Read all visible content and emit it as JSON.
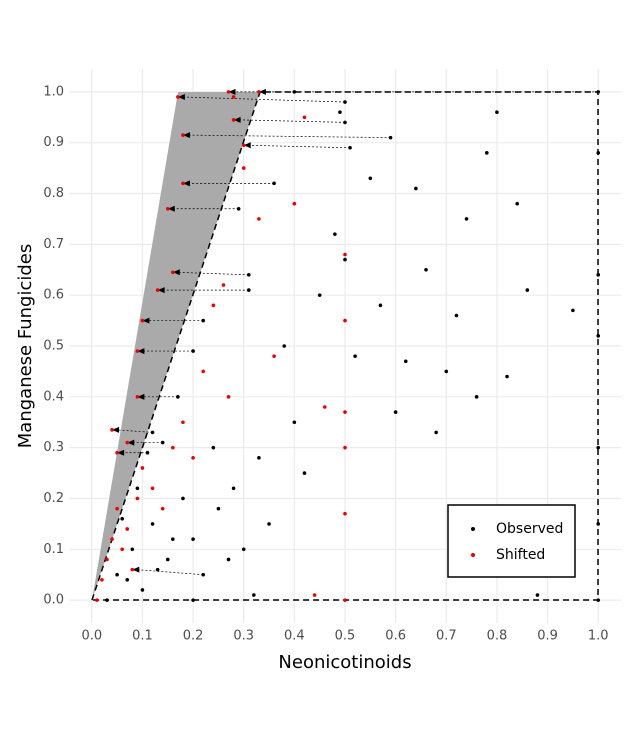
{
  "chart_data": {
    "type": "scatter",
    "xlabel": "Neonicotinoids",
    "ylabel": "Manganese Fungicides",
    "xlim": [
      -0.045,
      1.045
    ],
    "ylim": [
      -0.045,
      1.045
    ],
    "xticks": [
      {
        "value": 0,
        "label": "0.0"
      },
      0.1,
      0.2,
      0.3,
      0.4,
      0.5,
      0.6,
      0.7,
      0.8,
      0.9,
      {
        "value": 1,
        "label": "1.0"
      }
    ],
    "yticks": [
      {
        "value": 0,
        "label": "0.0"
      },
      0.1,
      0.2,
      0.3,
      0.4,
      0.5,
      0.6,
      0.7,
      0.8,
      0.9,
      {
        "value": 1,
        "label": "1.0"
      }
    ],
    "grid": true,
    "legend": "bottom-right",
    "series": [
      {
        "name": "Observed",
        "color": "#000000",
        "x": [
          0.5,
          0.49,
          0.5,
          0.59,
          0.51,
          0.36,
          0.29,
          0.31,
          0.31,
          0.22,
          0.2,
          0.17,
          0.12,
          0.14,
          0.11,
          0.4,
          1.0,
          0.05,
          0.08,
          0.1,
          0.12,
          0.15,
          0.18,
          0.2,
          0.22,
          0.25,
          0.28,
          0.3,
          0.33,
          0.35,
          0.38,
          0.4,
          0.42,
          0.45,
          0.48,
          0.5,
          0.52,
          0.55,
          0.57,
          0.6,
          0.62,
          0.64,
          0.66,
          0.68,
          0.7,
          0.72,
          0.74,
          0.76,
          0.78,
          0.8,
          0.82,
          0.84,
          0.86,
          0.88,
          0.95,
          1.0,
          1.0,
          1.0,
          1.0,
          1.0,
          1.0,
          0.03,
          0.07,
          0.13,
          0.16,
          0.06,
          0.09,
          0.24,
          0.27,
          0.32,
          0.2
        ],
        "values": [
          0.98,
          0.96,
          0.94,
          0.91,
          0.89,
          0.82,
          0.77,
          0.64,
          0.61,
          0.55,
          0.49,
          0.4,
          0.33,
          0.31,
          0.29,
          1.0,
          1.0,
          0.05,
          0.1,
          0.02,
          0.15,
          0.08,
          0.2,
          0.12,
          0.05,
          0.18,
          0.22,
          0.1,
          0.28,
          0.15,
          0.5,
          0.35,
          0.25,
          0.6,
          0.72,
          0.67,
          0.48,
          0.83,
          0.58,
          0.37,
          0.47,
          0.81,
          0.65,
          0.33,
          0.45,
          0.56,
          0.75,
          0.4,
          0.88,
          0.96,
          0.44,
          0.78,
          0.61,
          0.01,
          0.57,
          0.88,
          0.64,
          0.52,
          0.3,
          0.15,
          0.0,
          0.0,
          0.04,
          0.06,
          0.12,
          0.16,
          0.22,
          0.3,
          0.08,
          0.01,
          0.0
        ]
      },
      {
        "name": "Shifted",
        "color": "#ee0000",
        "x": [
          0.17,
          0.28,
          0.28,
          0.18,
          0.3,
          0.18,
          0.15,
          0.16,
          0.13,
          0.1,
          0.09,
          0.09,
          0.04,
          0.07,
          0.05,
          0.27,
          0.33,
          0.01,
          0.02,
          0.03,
          0.04,
          0.05,
          0.06,
          0.07,
          0.08,
          0.09,
          0.1,
          0.12,
          0.14,
          0.16,
          0.18,
          0.2,
          0.22,
          0.24,
          0.26,
          0.27,
          0.3,
          0.33,
          0.36,
          0.4,
          0.42,
          0.44,
          0.5,
          0.5,
          0.5,
          0.5,
          0.5,
          0.5,
          0.46
        ],
        "values": [
          0.99,
          0.99,
          0.945,
          0.915,
          0.895,
          0.82,
          0.77,
          0.645,
          0.61,
          0.55,
          0.49,
          0.4,
          0.335,
          0.31,
          0.29,
          1.0,
          1.0,
          0.0,
          0.04,
          0.08,
          0.12,
          0.18,
          0.1,
          0.14,
          0.06,
          0.2,
          0.26,
          0.22,
          0.18,
          0.3,
          0.35,
          0.28,
          0.45,
          0.58,
          0.62,
          0.4,
          0.85,
          0.75,
          0.48,
          0.78,
          0.95,
          0.01,
          0.68,
          0.55,
          0.37,
          0.3,
          0.17,
          0.0,
          0.38
        ]
      }
    ]
  }
}
